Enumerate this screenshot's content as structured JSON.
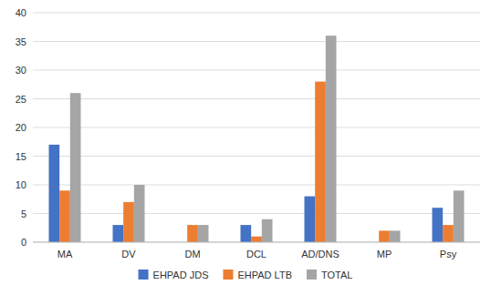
{
  "chart_data": {
    "type": "bar",
    "categories": [
      "MA",
      "DV",
      "DM",
      "DCL",
      "AD/DNS",
      "MP",
      "Psy"
    ],
    "series": [
      {
        "name": "EHPAD JDS",
        "color": "#4472C4",
        "values": [
          17,
          3,
          0,
          3,
          8,
          0,
          6
        ]
      },
      {
        "name": "EHPAD LTB",
        "color": "#ED7D31",
        "values": [
          9,
          7,
          3,
          1,
          28,
          2,
          3
        ]
      },
      {
        "name": "TOTAL",
        "color": "#A5A5A5",
        "values": [
          26,
          10,
          3,
          4,
          36,
          2,
          9
        ]
      }
    ],
    "ylim": [
      0,
      40
    ],
    "yticks": [
      0,
      5,
      10,
      15,
      20,
      25,
      30,
      35,
      40
    ],
    "grid": true,
    "legend": "bottom"
  }
}
